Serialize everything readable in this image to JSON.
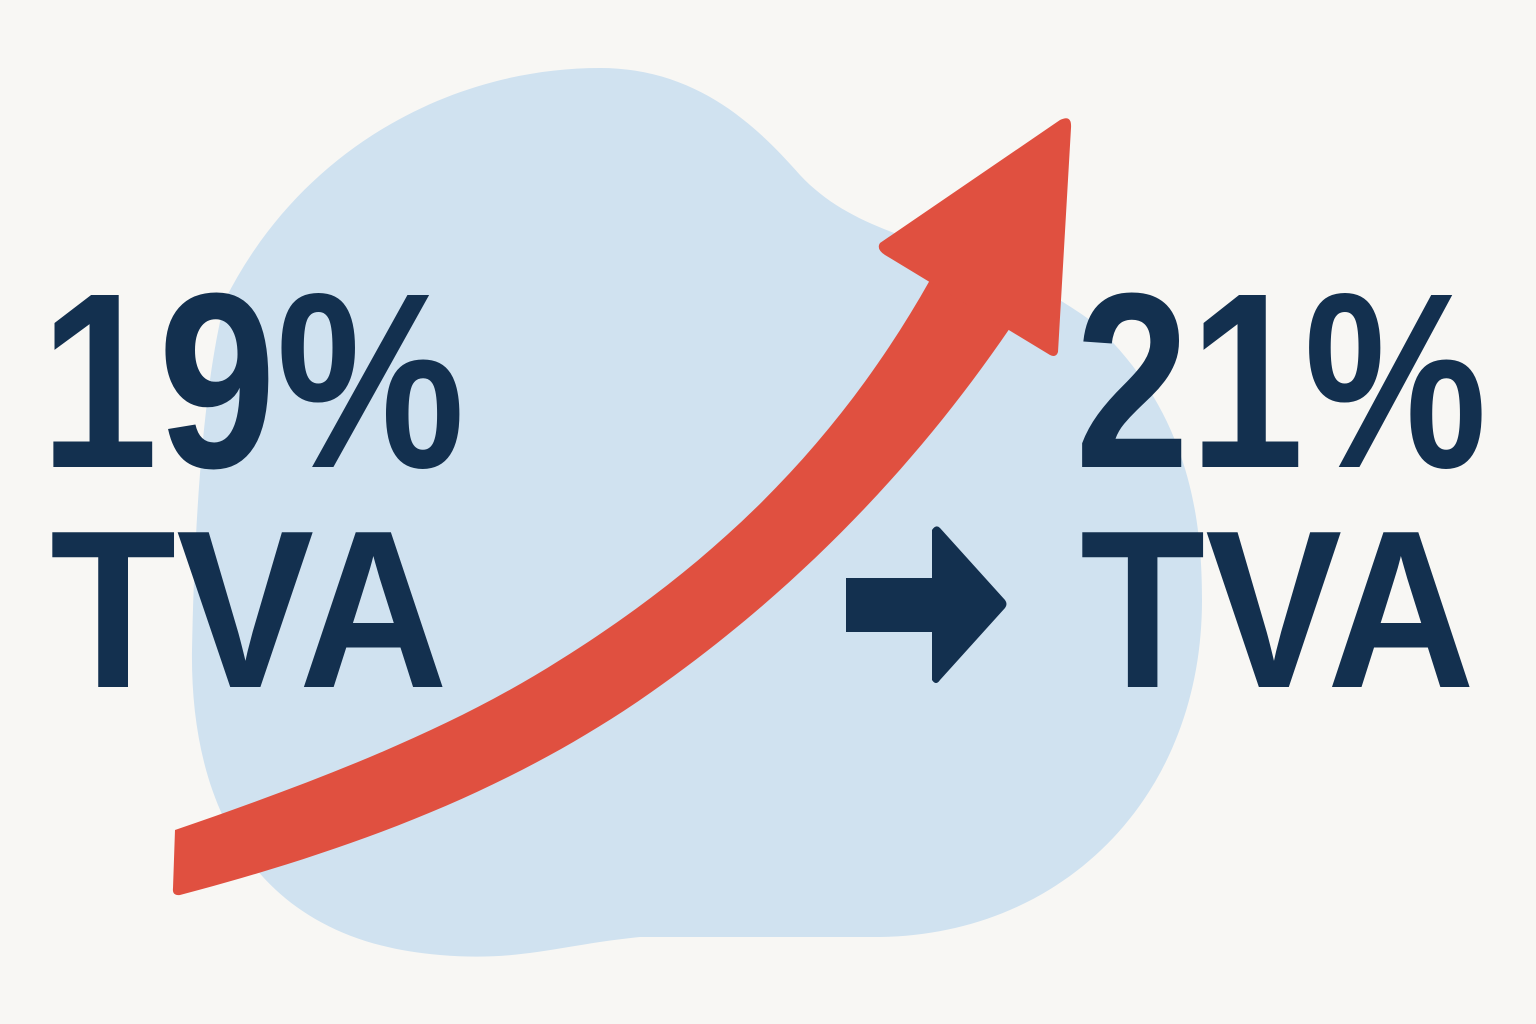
{
  "before": {
    "rate": "19%",
    "label": "TVA"
  },
  "after": {
    "rate": "21%",
    "label": "TVA"
  },
  "icons": {
    "trend": "trend-up-arrow-icon",
    "transition": "right-arrow-icon"
  },
  "colors": {
    "background": "#f8f7f4",
    "blob": "#d0e2f0",
    "text": "#13304f",
    "trend_arrow": "#e05040"
  }
}
